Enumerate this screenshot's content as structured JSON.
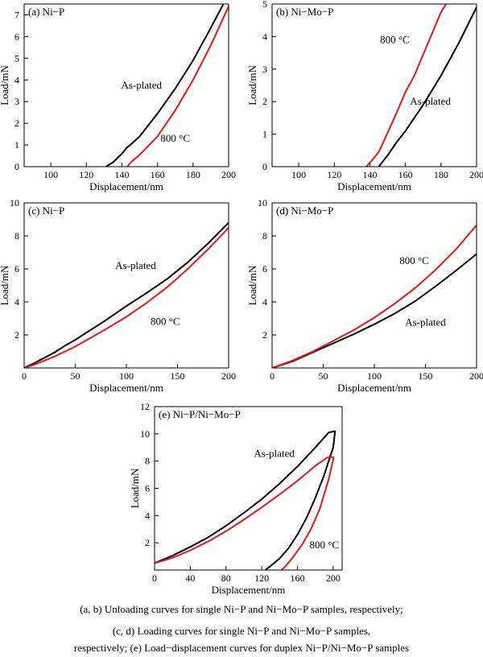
{
  "caption": {
    "line1": "(a, b) Unloading curves for single Ni−P and Ni−Mo−P samples, respectively;",
    "line2": "(c,  d)  Loading  curves  for  single  Ni−P  and  Ni−Mo−P  samples,",
    "line3": "respectively; (e) Load−displacement curves for duplex Ni−P/Ni−Mo−P samples"
  },
  "colors": {
    "as_plated": "#000000",
    "c800": "#e0191d"
  },
  "chart_data": [
    {
      "id": "a",
      "type": "line",
      "panel_label": "(a)  Ni−P",
      "xlabel": "Displacement/nm",
      "ylabel": "Load/mN",
      "xlim": [
        85,
        200
      ],
      "ylim": [
        0,
        7.5
      ],
      "xticks": [
        100,
        120,
        140,
        160,
        180,
        200
      ],
      "yticks": [
        0,
        1,
        2,
        3,
        4,
        5,
        6,
        7
      ],
      "series": [
        {
          "name": "As-plated",
          "color": "#000000",
          "x": [
            131,
            135,
            140,
            143,
            144,
            150,
            160,
            170,
            180,
            190,
            197
          ],
          "y": [
            0,
            0.2,
            0.6,
            0.9,
            0.95,
            1.4,
            2.45,
            3.6,
            4.9,
            6.4,
            7.5
          ]
        },
        {
          "name": "800 °C",
          "color": "#e0191d",
          "x": [
            143,
            145,
            150,
            160,
            170,
            180,
            190,
            200
          ],
          "y": [
            0,
            0.2,
            0.55,
            1.4,
            2.6,
            4.0,
            5.6,
            7.4
          ]
        }
      ],
      "annotations": [
        {
          "text": "As-plated",
          "x": 151,
          "y": 3.6
        },
        {
          "text": "800 °C",
          "x": 170,
          "y": 1.15
        }
      ]
    },
    {
      "id": "b",
      "type": "line",
      "panel_label": "(b)  Ni−Mo−P",
      "xlabel": "Displacement/nm",
      "ylabel": "Load/mN",
      "xlim": [
        85,
        200
      ],
      "ylim": [
        0,
        5
      ],
      "xticks": [
        100,
        120,
        140,
        160,
        180,
        200
      ],
      "yticks": [
        0,
        1,
        2,
        3,
        4,
        5
      ],
      "series": [
        {
          "name": "As-plated",
          "color": "#000000",
          "x": [
            145,
            150,
            155,
            160,
            170,
            180,
            190,
            200
          ],
          "y": [
            0,
            0.35,
            0.75,
            1.1,
            1.9,
            2.8,
            3.8,
            4.9
          ]
        },
        {
          "name": "800 °C",
          "color": "#e0191d",
          "x": [
            138,
            142,
            145,
            150,
            155,
            160,
            165,
            170,
            175,
            180,
            184
          ],
          "y": [
            0,
            0.25,
            0.45,
            1.05,
            1.65,
            2.3,
            2.8,
            3.45,
            4.1,
            4.75,
            5.1
          ]
        }
      ],
      "annotations": [
        {
          "text": "800 °C",
          "x": 154,
          "y": 3.8
        },
        {
          "text": "As-plated",
          "x": 174,
          "y": 1.9
        }
      ]
    },
    {
      "id": "c",
      "type": "line",
      "panel_label": "(c)  Ni−P",
      "xlabel": "Displacement/nm",
      "ylabel": "Load/mN",
      "xlim": [
        0,
        200
      ],
      "ylim": [
        0,
        10
      ],
      "xticks": [
        0,
        50,
        100,
        150,
        200
      ],
      "yticks": [
        2,
        4,
        6,
        8,
        10
      ],
      "series": [
        {
          "name": "As-plated",
          "color": "#000000",
          "x": [
            0,
            10,
            20,
            30,
            40,
            50,
            60,
            80,
            100,
            120,
            140,
            160,
            180,
            200
          ],
          "y": [
            0,
            0.3,
            0.62,
            0.95,
            1.35,
            1.7,
            2.1,
            2.9,
            3.75,
            4.55,
            5.4,
            6.4,
            7.55,
            8.8
          ]
        },
        {
          "name": "800 °C",
          "color": "#e0191d",
          "x": [
            0,
            10,
            20,
            30,
            40,
            50,
            60,
            80,
            100,
            120,
            140,
            160,
            180,
            200
          ],
          "y": [
            0,
            0.2,
            0.45,
            0.7,
            1.0,
            1.3,
            1.65,
            2.35,
            3.1,
            3.95,
            4.9,
            6.0,
            7.2,
            8.5
          ]
        }
      ],
      "annotations": [
        {
          "text": "As-plated",
          "x": 109,
          "y": 6.0
        },
        {
          "text": "800 °C",
          "x": 138,
          "y": 2.6
        }
      ]
    },
    {
      "id": "d",
      "type": "line",
      "panel_label": "(d)  Ni−Mo−P",
      "xlabel": "Displacement/nm",
      "ylabel": "Load/mN",
      "xlim": [
        0,
        200
      ],
      "ylim": [
        0,
        10
      ],
      "xticks": [
        0,
        50,
        100,
        150,
        200
      ],
      "yticks": [
        2,
        4,
        6,
        8,
        10
      ],
      "series": [
        {
          "name": "As-plated",
          "color": "#000000",
          "x": [
            0,
            20,
            40,
            60,
            80,
            100,
            120,
            140,
            160,
            180,
            200
          ],
          "y": [
            0,
            0.4,
            0.95,
            1.5,
            2.05,
            2.65,
            3.3,
            4.05,
            4.95,
            5.9,
            6.9
          ]
        },
        {
          "name": "800 °C",
          "color": "#e0191d",
          "x": [
            0,
            20,
            40,
            60,
            80,
            100,
            120,
            140,
            160,
            180,
            200
          ],
          "y": [
            0,
            0.45,
            1.0,
            1.65,
            2.3,
            3.05,
            3.9,
            4.85,
            5.95,
            7.2,
            8.65
          ]
        }
      ],
      "annotations": [
        {
          "text": "800 °C",
          "x": 139,
          "y": 6.3
        },
        {
          "text": "As-plated",
          "x": 150,
          "y": 2.55
        }
      ]
    },
    {
      "id": "e",
      "type": "line",
      "panel_label": "(e)  Ni−P/Ni−Mo−P",
      "xlabel": "Displacement/nm",
      "ylabel": "Load/mN",
      "xlim": [
        0,
        210
      ],
      "ylim": [
        0,
        12
      ],
      "xticks": [
        0,
        40,
        80,
        120,
        160,
        200
      ],
      "yticks": [
        2,
        4,
        6,
        8,
        10,
        12
      ],
      "series": [
        {
          "name": "As-plated",
          "color": "#000000",
          "x": [
            0,
            20,
            40,
            60,
            80,
            100,
            120,
            140,
            160,
            180,
            195,
            202,
            202,
            200,
            190,
            180,
            170,
            160,
            150,
            140,
            130,
            124
          ],
          "y": [
            0.5,
            1.05,
            1.7,
            2.4,
            3.25,
            4.2,
            5.2,
            6.35,
            7.6,
            9.0,
            10.1,
            10.2,
            10.1,
            9.0,
            7.0,
            5.3,
            3.8,
            2.6,
            1.6,
            0.85,
            0.3,
            0
          ]
        },
        {
          "name": "800 °C",
          "color": "#e0191d",
          "x": [
            0,
            20,
            40,
            60,
            80,
            100,
            120,
            140,
            160,
            180,
            193,
            200,
            200,
            195,
            185,
            175,
            165,
            155,
            147,
            142
          ],
          "y": [
            0.5,
            0.9,
            1.45,
            2.1,
            2.85,
            3.7,
            4.6,
            5.55,
            6.55,
            7.65,
            8.25,
            8.3,
            8.1,
            6.7,
            4.5,
            3.0,
            1.85,
            0.95,
            0.3,
            0
          ]
        }
      ],
      "annotations": [
        {
          "text": "As-plated",
          "x": 134,
          "y": 8.3
        },
        {
          "text": "800 °C",
          "x": 190,
          "y": 1.6
        }
      ]
    }
  ]
}
